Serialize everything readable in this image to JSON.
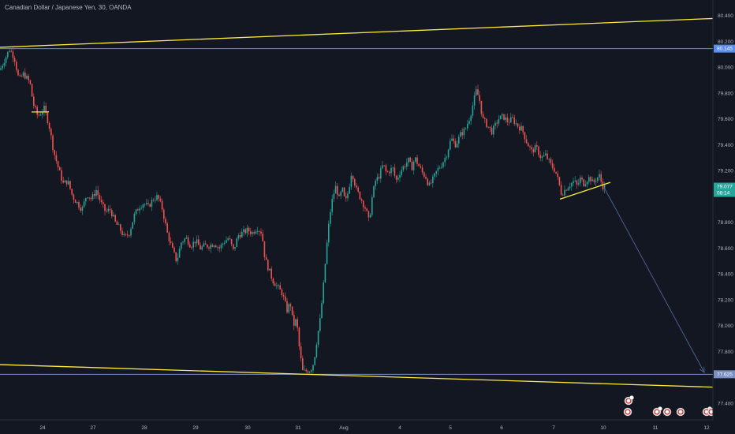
{
  "chart_data": {
    "type": "candlestick",
    "title": "Canadian Dollar / Japanese Yen, 30, OANDA",
    "xlabel": "",
    "ylabel": "",
    "ylim": [
      77.34,
      80.46
    ],
    "y_ticks": [
      "80.400",
      "80.200",
      "80.000",
      "79.800",
      "79.600",
      "79.400",
      "79.200",
      "78.800",
      "78.600",
      "78.400",
      "78.200",
      "78.000",
      "77.800",
      "77.400"
    ],
    "x_ticks": [
      "24",
      "27",
      "28",
      "29",
      "30",
      "31",
      "Aug",
      "4",
      "5",
      "6",
      "7",
      "10",
      "11",
      "12"
    ],
    "price_path": [
      [
        0,
        79.98
      ],
      [
        5,
        80.05
      ],
      [
        12,
        80.14
      ],
      [
        18,
        80.08
      ],
      [
        24,
        79.9
      ],
      [
        30,
        79.95
      ],
      [
        38,
        79.88
      ],
      [
        42,
        79.72
      ],
      [
        48,
        79.62
      ],
      [
        56,
        79.68
      ],
      [
        62,
        79.56
      ],
      [
        68,
        79.35
      ],
      [
        74,
        79.22
      ],
      [
        80,
        79.1
      ],
      [
        86,
        79.12
      ],
      [
        92,
        79.0
      ],
      [
        98,
        78.95
      ],
      [
        104,
        78.9
      ],
      [
        110,
        79.02
      ],
      [
        116,
        78.98
      ],
      [
        122,
        79.05
      ],
      [
        128,
        78.95
      ],
      [
        134,
        78.88
      ],
      [
        140,
        78.9
      ],
      [
        146,
        78.8
      ],
      [
        152,
        78.75
      ],
      [
        158,
        78.68
      ],
      [
        164,
        78.72
      ],
      [
        170,
        78.85
      ],
      [
        176,
        78.92
      ],
      [
        182,
        78.95
      ],
      [
        188,
        78.92
      ],
      [
        194,
        78.98
      ],
      [
        200,
        79.0
      ],
      [
        206,
        78.9
      ],
      [
        212,
        78.72
      ],
      [
        218,
        78.6
      ],
      [
        224,
        78.5
      ],
      [
        230,
        78.65
      ],
      [
        236,
        78.68
      ],
      [
        242,
        78.62
      ],
      [
        248,
        78.66
      ],
      [
        254,
        78.6
      ],
      [
        260,
        78.62
      ],
      [
        266,
        78.62
      ],
      [
        272,
        78.64
      ],
      [
        278,
        78.6
      ],
      [
        284,
        78.65
      ],
      [
        290,
        78.68
      ],
      [
        296,
        78.58
      ],
      [
        302,
        78.7
      ],
      [
        308,
        78.72
      ],
      [
        314,
        78.74
      ],
      [
        320,
        78.72
      ],
      [
        326,
        78.76
      ],
      [
        332,
        78.72
      ],
      [
        336,
        78.52
      ],
      [
        340,
        78.45
      ],
      [
        346,
        78.35
      ],
      [
        352,
        78.3
      ],
      [
        358,
        78.25
      ],
      [
        364,
        78.12
      ],
      [
        368,
        78.18
      ],
      [
        372,
        78.0
      ],
      [
        376,
        78.05
      ],
      [
        380,
        77.8
      ],
      [
        384,
        77.64
      ],
      [
        388,
        77.65
      ],
      [
        394,
        77.66
      ],
      [
        398,
        77.72
      ],
      [
        402,
        77.9
      ],
      [
        406,
        78.05
      ],
      [
        410,
        78.3
      ],
      [
        414,
        78.6
      ],
      [
        418,
        78.85
      ],
      [
        422,
        79.0
      ],
      [
        426,
        79.08
      ],
      [
        430,
        78.98
      ],
      [
        434,
        79.06
      ],
      [
        438,
        78.95
      ],
      [
        442,
        79.05
      ],
      [
        446,
        79.2
      ],
      [
        452,
        79.05
      ],
      [
        458,
        78.98
      ],
      [
        464,
        78.9
      ],
      [
        468,
        78.8
      ],
      [
        472,
        79.0
      ],
      [
        476,
        79.12
      ],
      [
        480,
        79.15
      ],
      [
        486,
        79.25
      ],
      [
        490,
        79.18
      ],
      [
        494,
        79.2
      ],
      [
        498,
        79.22
      ],
      [
        502,
        79.12
      ],
      [
        508,
        79.2
      ],
      [
        514,
        79.25
      ],
      [
        518,
        79.28
      ],
      [
        522,
        79.22
      ],
      [
        526,
        79.3
      ],
      [
        530,
        79.25
      ],
      [
        536,
        79.18
      ],
      [
        540,
        79.15
      ],
      [
        544,
        79.08
      ],
      [
        548,
        79.12
      ],
      [
        554,
        79.2
      ],
      [
        560,
        79.25
      ],
      [
        566,
        79.32
      ],
      [
        572,
        79.45
      ],
      [
        578,
        79.4
      ],
      [
        584,
        79.48
      ],
      [
        590,
        79.52
      ],
      [
        596,
        79.62
      ],
      [
        600,
        79.72
      ],
      [
        604,
        79.82
      ],
      [
        608,
        79.75
      ],
      [
        612,
        79.6
      ],
      [
        618,
        79.55
      ],
      [
        624,
        79.5
      ],
      [
        628,
        79.55
      ],
      [
        632,
        79.6
      ],
      [
        638,
        79.62
      ],
      [
        644,
        79.58
      ],
      [
        650,
        79.6
      ],
      [
        656,
        79.55
      ],
      [
        662,
        79.52
      ],
      [
        668,
        79.42
      ],
      [
        674,
        79.35
      ],
      [
        680,
        79.38
      ],
      [
        686,
        79.3
      ],
      [
        692,
        79.32
      ],
      [
        698,
        79.25
      ],
      [
        704,
        79.2
      ],
      [
        708,
        79.12
      ],
      [
        712,
        79.02
      ],
      [
        716,
        79.05
      ],
      [
        720,
        79.08
      ],
      [
        724,
        79.1
      ],
      [
        728,
        79.12
      ],
      [
        732,
        79.08
      ],
      [
        736,
        79.14
      ],
      [
        740,
        79.1
      ],
      [
        744,
        79.13
      ],
      [
        748,
        79.15
      ],
      [
        752,
        79.1
      ],
      [
        756,
        79.14
      ],
      [
        760,
        79.16
      ],
      [
        764,
        79.08
      ],
      [
        767,
        79.08
      ]
    ],
    "candle_colors": {
      "up": "#26a69a",
      "down": "#ef5350"
    },
    "current_price": {
      "value": "79.077",
      "countdown": "08:14",
      "color": "#26a69a"
    },
    "price_markers": [
      {
        "value": "80.145",
        "color": "#5b8def"
      },
      {
        "value": "77.625",
        "color": "#7a8fc4"
      }
    ],
    "horizontal_lines": [
      {
        "price": 80.145,
        "color": "#5b8def"
      },
      {
        "price": 77.625,
        "color": "#7a8fc4"
      }
    ],
    "trendlines": [
      {
        "from": [
          0,
          80.155
        ],
        "to": [
          932,
          80.385
        ],
        "color": "#ffeb3b"
      },
      {
        "from": [
          0,
          77.7
        ],
        "to": [
          932,
          77.52
        ],
        "color": "#ffeb3b"
      },
      {
        "from": [
          40,
          79.655
        ],
        "to": [
          62,
          79.655
        ],
        "color": "#ffeb3b"
      },
      {
        "from": [
          710,
          78.98
        ],
        "to": [
          774,
          79.11
        ],
        "color": "#ffeb3b"
      }
    ],
    "projection_arrow": {
      "from": [
        766,
        79.07
      ],
      "to": [
        893,
        77.64
      ],
      "color": "#4a5f8f"
    },
    "event_badges": {
      "row1": [
        797
      ],
      "row2": [
        796,
        833,
        846,
        863,
        896,
        902
      ]
    },
    "grid": false,
    "legend": "none"
  }
}
